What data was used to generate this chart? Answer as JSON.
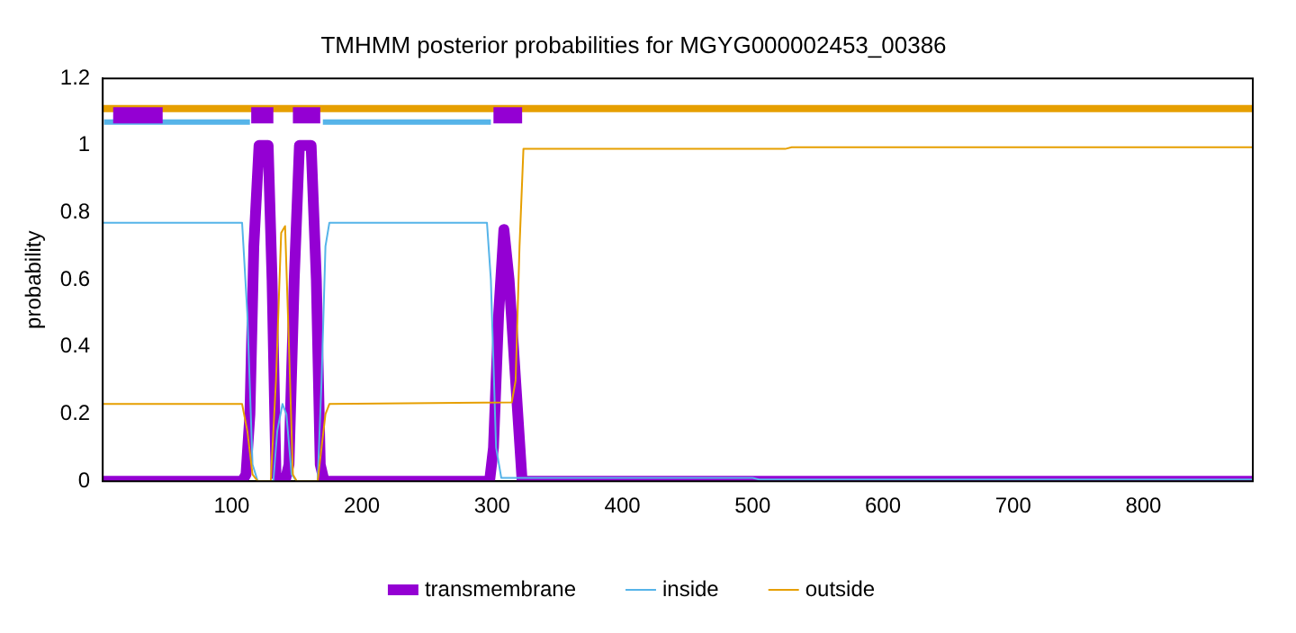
{
  "chart_data": {
    "type": "line",
    "title": "TMHMM posterior probabilities for MGYG000002453_00386",
    "ylabel": "probability",
    "xlim": [
      1,
      884
    ],
    "xticks": [
      100,
      200,
      300,
      400,
      500,
      600,
      700,
      800
    ],
    "ylim": [
      0,
      1.2
    ],
    "yticks": [
      0,
      0.2,
      0.4,
      0.6,
      0.8,
      1,
      1.2
    ],
    "grid": false,
    "legend": "bottom",
    "marker": "none",
    "line_style": "solid",
    "series": [
      {
        "name": "transmembrane",
        "color": "#9400d3",
        "x": [
          1,
          108,
          111,
          114,
          117,
          121,
          128,
          131,
          134,
          137,
          141,
          144,
          148,
          152,
          161,
          165,
          168,
          171,
          200,
          298,
          301,
          305,
          309,
          313,
          318,
          323,
          326,
          884
        ],
        "values": [
          0,
          0,
          0.02,
          0.2,
          0.7,
          1,
          1,
          0.6,
          0.02,
          0,
          0,
          0.05,
          0.6,
          1,
          1,
          0.6,
          0.05,
          0,
          0,
          0,
          0.1,
          0.5,
          0.75,
          0.6,
          0.3,
          0,
          0,
          0
        ]
      },
      {
        "name": "inside",
        "color": "#56b4e9",
        "x": [
          1,
          108,
          112,
          116,
          120,
          132,
          135,
          139,
          142,
          146,
          150,
          166,
          169,
          172,
          175,
          296,
          299,
          303,
          307,
          500,
          505,
          884
        ],
        "values": [
          0.77,
          0.77,
          0.5,
          0.05,
          0,
          0,
          0.15,
          0.23,
          0.2,
          0.02,
          0,
          0,
          0.3,
          0.7,
          0.77,
          0.77,
          0.6,
          0.1,
          0.01,
          0.01,
          0.005,
          0.005
        ]
      },
      {
        "name": "outside",
        "color": "#e69f00",
        "x": [
          1,
          108,
          112,
          116,
          120,
          130,
          134,
          138,
          141,
          144,
          147,
          150,
          166,
          169,
          172,
          175,
          315,
          318,
          321,
          324,
          525,
          530,
          884
        ],
        "values": [
          0.23,
          0.23,
          0.15,
          0.02,
          0,
          0,
          0.3,
          0.74,
          0.76,
          0.4,
          0.02,
          0,
          0,
          0.1,
          0.2,
          0.23,
          0.235,
          0.3,
          0.7,
          0.99,
          0.99,
          0.995,
          0.995
        ]
      },
      {
        "color": "#e69f00",
        "x": [
          1,
          884
        ],
        "values": [
          1.11,
          1.11
        ]
      },
      {
        "color": "#56b4e9",
        "x": [
          2,
          114,
          142,
          170,
          299
        ],
        "values": [
          1.07,
          1.07,
          null,
          1.07,
          1.07
        ]
      },
      {
        "color": "#9400d3",
        "x": [
          9,
          47,
          80,
          115,
          132,
          140,
          147,
          168,
          235,
          301,
          323
        ],
        "values": [
          1.09,
          1.09,
          null,
          1.09,
          1.09,
          null,
          1.09,
          1.09,
          null,
          1.09,
          1.09
        ]
      }
    ]
  }
}
